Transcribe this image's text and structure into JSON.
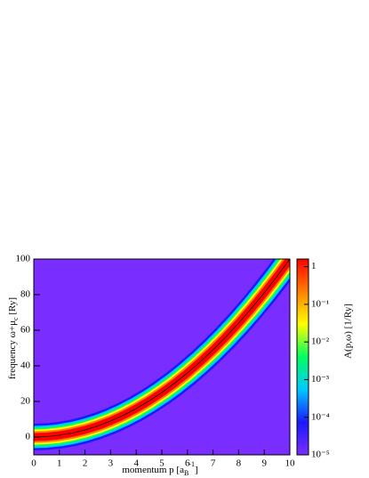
{
  "chart_data": {
    "type": "heatmap",
    "x_label": [
      "momentum p [a",
      "B",
      "-1",
      "]"
    ],
    "y_label": [
      "frequency ω+μ",
      "c",
      " [Ry]"
    ],
    "z_label": "A(p,ω) [1/Ry]",
    "x": [
      0,
      0.5,
      1,
      1.5,
      2,
      2.5,
      3,
      3.5,
      4,
      4.5,
      5,
      5.5,
      6,
      6.5,
      7,
      7.5,
      8,
      8.5,
      9,
      9.5,
      10
    ],
    "values": [
      0,
      0.25,
      1,
      2.25,
      4,
      6.25,
      9,
      12.25,
      16,
      20.25,
      25,
      30.25,
      36,
      42.25,
      49,
      56.25,
      64,
      72.25,
      81,
      90.25,
      100
    ],
    "xlim": [
      0,
      10
    ],
    "xticks": [
      0,
      1,
      2,
      3,
      4,
      5,
      6,
      7,
      8,
      9,
      10
    ],
    "ylim": [
      -10,
      100
    ],
    "yticks": [
      0,
      20,
      40,
      60,
      80,
      100
    ],
    "zlim": [
      1e-05,
      1.6
    ],
    "zlog": true,
    "zticks": [
      {
        "value": 1e-05,
        "label": "10⁻⁵"
      },
      {
        "value": 0.0001,
        "label": "10⁻⁴"
      },
      {
        "value": 0.001,
        "label": "10⁻³"
      },
      {
        "value": 0.01,
        "label": "10⁻²"
      },
      {
        "value": 0.1,
        "label": "10⁻¹"
      },
      1
    ],
    "colors": [
      "#7a2dff",
      "#1a1aff",
      "#00c8ff",
      "#00ff60",
      "#ffff00",
      "#ff8000",
      "#ff0000"
    ],
    "ridge_color": "#000000"
  }
}
